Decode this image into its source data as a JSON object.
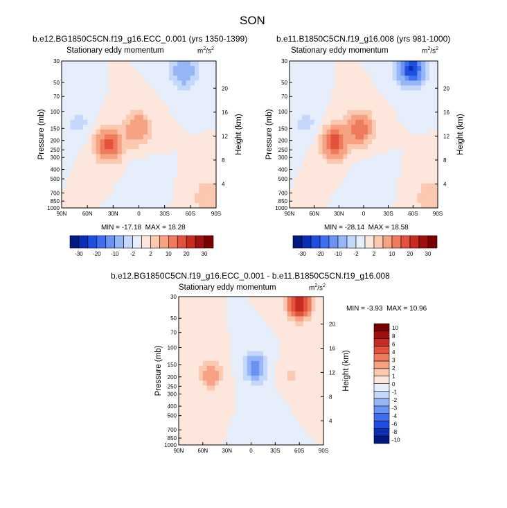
{
  "title": "SON",
  "colors": {
    "bound": [
      "#001a80",
      "#0a2fb4",
      "#1f4fe0",
      "#3f6ff0",
      "#6a93f4",
      "#96b6f7",
      "#c4d8fb",
      "#e6eefc",
      "#fde7dc",
      "#fbc8b0",
      "#f6a283",
      "#ef7a5c",
      "#e3523c",
      "#c92b20",
      "#a01010",
      "#7a0000"
    ]
  },
  "chart_data": [
    {
      "type": "heatmap",
      "name": "panel-1",
      "title": "b.e12.BG1850C5CN.f19_g16.ECC_0.001 (yrs 1350-1399)",
      "subtitle": "Stationary eddy momentum",
      "units_base": "m",
      "units_exp1": "2",
      "units_mid": "/s",
      "units_exp2": "2",
      "xlabel": "",
      "ylabel": "Pressure (mb)",
      "y2label": "Height (km)",
      "x_ticks": [
        "90N",
        "60N",
        "30N",
        "0",
        "30S",
        "60S",
        "90S"
      ],
      "x_values": [
        90,
        60,
        30,
        0,
        -30,
        -60,
        -90
      ],
      "y_ticks": [
        "30",
        "50",
        "70",
        "100",
        "150",
        "200",
        "250",
        "300",
        "400",
        "500",
        "700",
        "850",
        "1000"
      ],
      "y_values": [
        30,
        50,
        70,
        100,
        150,
        200,
        250,
        300,
        400,
        500,
        700,
        850,
        1000
      ],
      "y2_ticks": [
        "4",
        "8",
        "12",
        "16",
        "20"
      ],
      "y2_values": [
        4,
        8,
        12,
        16,
        20
      ],
      "ylim": [
        1000,
        30
      ],
      "xlim": [
        90,
        -90
      ],
      "min_text": "MIN = -17.18",
      "max_text": "MAX =  18.28",
      "min": -17.18,
      "max": 18.28,
      "features": [
        {
          "lat": 35,
          "p": 220,
          "amp": 17
        },
        {
          "lat": 2,
          "p": 150,
          "amp": 10
        },
        {
          "lat": -52,
          "p": 38,
          "amp": -10
        },
        {
          "lat": 70,
          "p": 130,
          "amp": -3
        },
        {
          "lat": -5,
          "p": 500,
          "amp": -1.5
        },
        {
          "lat": -80,
          "p": 750,
          "amp": 5
        }
      ],
      "colorbar_labels": [
        "-30",
        "-20",
        "-10",
        "-2",
        "2",
        "10",
        "20",
        "30"
      ]
    },
    {
      "type": "heatmap",
      "name": "panel-2",
      "title": "b.e11.B1850C5CN.f19_g16.008 (yrs 981-1000)",
      "subtitle": "Stationary eddy momentum",
      "units_base": "m",
      "units_exp1": "2",
      "units_mid": "/s",
      "units_exp2": "2",
      "xlabel": "",
      "ylabel": "Pressure (mb)",
      "y2label": "Height (km)",
      "x_ticks": [
        "90N",
        "60N",
        "30N",
        "0",
        "30S",
        "60S",
        "90S"
      ],
      "x_values": [
        90,
        60,
        30,
        0,
        -30,
        -60,
        -90
      ],
      "y_ticks": [
        "30",
        "50",
        "70",
        "100",
        "150",
        "200",
        "250",
        "300",
        "400",
        "500",
        "700",
        "850",
        "1000"
      ],
      "y_values": [
        30,
        50,
        70,
        100,
        150,
        200,
        250,
        300,
        400,
        500,
        700,
        850,
        1000
      ],
      "y2_ticks": [
        "4",
        "8",
        "12",
        "16",
        "20"
      ],
      "y2_values": [
        4,
        8,
        12,
        16,
        20
      ],
      "ylim": [
        1000,
        30
      ],
      "xlim": [
        90,
        -90
      ],
      "min_text": "MIN = -28.14",
      "max_text": "MAX =  18.58",
      "min": -28.14,
      "max": 18.58,
      "features": [
        {
          "lat": 35,
          "p": 210,
          "amp": 18
        },
        {
          "lat": 5,
          "p": 150,
          "amp": 15
        },
        {
          "lat": -58,
          "p": 36,
          "amp": -26
        },
        {
          "lat": 70,
          "p": 130,
          "amp": -3
        },
        {
          "lat": -5,
          "p": 500,
          "amp": -1.5
        },
        {
          "lat": -80,
          "p": 750,
          "amp": 5
        }
      ],
      "colorbar_labels": [
        "-30",
        "-20",
        "-10",
        "-2",
        "2",
        "10",
        "20",
        "30"
      ]
    },
    {
      "type": "heatmap",
      "name": "panel-3",
      "title": "b.e12.BG1850C5CN.f19_g16.ECC_0.001 - b.e11.B1850C5CN.f19_g16.008",
      "subtitle": "Stationary eddy momentum",
      "units_base": "m",
      "units_exp1": "2",
      "units_mid": "/s",
      "units_exp2": "2",
      "xlabel": "",
      "ylabel": "Pressure (mb)",
      "y2label": "Height (km)",
      "x_ticks": [
        "90N",
        "60N",
        "30N",
        "0",
        "30S",
        "60S",
        "90S"
      ],
      "x_values": [
        90,
        60,
        30,
        0,
        -30,
        -60,
        -90
      ],
      "y_ticks": [
        "30",
        "50",
        "70",
        "100",
        "150",
        "200",
        "250",
        "300",
        "400",
        "500",
        "700",
        "850",
        "1000"
      ],
      "y_values": [
        30,
        50,
        70,
        100,
        150,
        200,
        250,
        300,
        400,
        500,
        700,
        850,
        1000
      ],
      "y2_ticks": [
        "4",
        "8",
        "12",
        "16",
        "20"
      ],
      "y2_values": [
        4,
        8,
        12,
        16,
        20
      ],
      "ylim": [
        1000,
        30
      ],
      "xlim": [
        90,
        -90
      ],
      "min_text": "MIN =  -3.93",
      "max_text": "MAX =  10.96",
      "min": -3.93,
      "max": 10.96,
      "features": [
        {
          "lat": -60,
          "p": 35,
          "amp": 8
        },
        {
          "lat": -5,
          "p": 160,
          "amp": -4
        },
        {
          "lat": 50,
          "p": 190,
          "amp": 3
        },
        {
          "lat": -50,
          "p": 200,
          "amp": 1.2
        },
        {
          "lat": -20,
          "p": 400,
          "amp": -0.8
        }
      ],
      "colorbar_labels": [
        "10",
        "8",
        "6",
        "4",
        "3",
        "2",
        "1",
        "0",
        "-1",
        "-2",
        "-3",
        "-4",
        "-6",
        "-8",
        "-10"
      ]
    }
  ]
}
